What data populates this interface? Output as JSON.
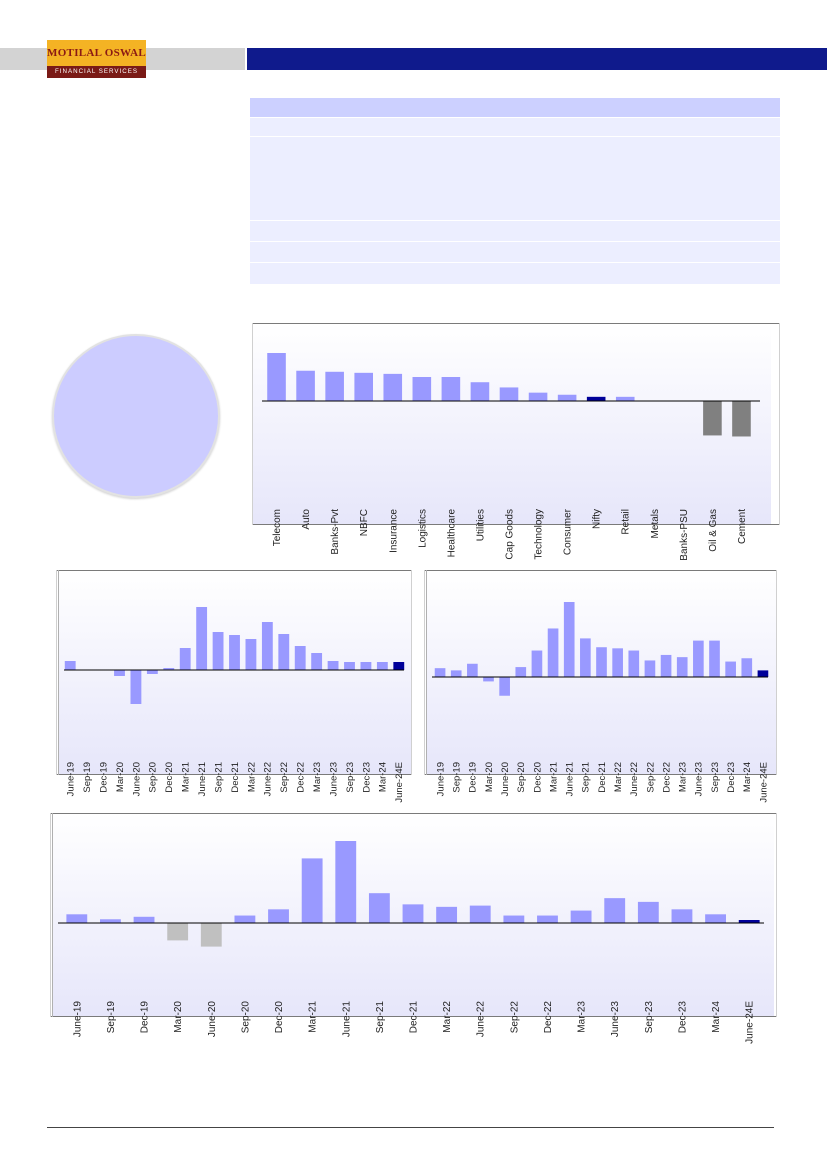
{
  "header": {
    "logo": {
      "brand": "MOTILAL OSWAL",
      "tagline": "FINANCIAL SERVICES"
    },
    "colors": {
      "bar_grey": "#d3d3d3",
      "bar_blue": "#0f1a8c"
    }
  },
  "table": {
    "rows": 7
  },
  "colors": {
    "bar": "#9999ff",
    "highlight": "#000099",
    "negative_dark": "#808080",
    "negative_light": "#c0c0c0",
    "panel_bg_top": "#ffffff",
    "panel_bg_bottom": "#e6e6fa"
  },
  "charts": {
    "sector": {
      "chart_data": {
        "type": "bar",
        "categories": [
          "Telecom",
          "Auto",
          "Banks-Pvt",
          "NBFC",
          "Insurance",
          "Logistics",
          "Healthcare",
          "Utilities",
          "Cap Goods",
          "Technology",
          "Consumer",
          "Nifty",
          "Retail",
          "Metals",
          "Banks-PSU",
          "Oil & Gas",
          "Cement"
        ],
        "values": [
          46,
          29,
          28,
          27,
          26,
          23,
          23,
          18,
          13,
          8,
          6,
          4,
          4,
          0,
          0,
          -33,
          -34
        ],
        "highlight_index": 11,
        "ylim": [
          -60,
          75
        ]
      }
    },
    "quarterly_left": {
      "chart_data": {
        "type": "bar",
        "categories": [
          "June-19",
          "Sep-19",
          "Dec-19",
          "Mar-20",
          "June-20",
          "Sep-20",
          "Dec-20",
          "Mar-21",
          "June-21",
          "Sep-21",
          "Dec-21",
          "Mar-22",
          "June-22",
          "Sep-22",
          "Dec-22",
          "Mar-23",
          "June-23",
          "Sep-23",
          "Dec-23",
          "Mar-24",
          "June-24E"
        ],
        "values": [
          9,
          0,
          0,
          -6,
          -34,
          -4,
          2,
          22,
          63,
          38,
          35,
          31,
          48,
          36,
          24,
          17,
          9,
          8,
          8,
          8,
          8
        ],
        "highlight_index": 20,
        "ylim": [
          -40,
          100
        ]
      }
    },
    "quarterly_right": {
      "chart_data": {
        "type": "bar",
        "categories": [
          "June-19",
          "Sep-19",
          "Dec-19",
          "Mar-20",
          "June-20",
          "Sep-20",
          "Dec-20",
          "Mar-21",
          "June-21",
          "Sep-21",
          "Dec-21",
          "Mar-22",
          "June-22",
          "Sep-22",
          "Dec-22",
          "Mar-23",
          "June-23",
          "Sep-23",
          "Dec-23",
          "Mar-24",
          "June-24E"
        ],
        "values": [
          8,
          6,
          12,
          -4,
          -17,
          9,
          24,
          44,
          68,
          35,
          27,
          26,
          24,
          15,
          20,
          18,
          33,
          33,
          14,
          17,
          6
        ],
        "highlight_index": 20,
        "ylim": [
          -30,
          100
        ]
      }
    },
    "quarterly_wide": {
      "chart_data": {
        "type": "bar",
        "categories": [
          "June-19",
          "Sep-19",
          "Dec-19",
          "Mar-20",
          "June-20",
          "Sep-20",
          "Dec-20",
          "Mar-21",
          "June-21",
          "Sep-21",
          "Dec-21",
          "Mar-22",
          "June-22",
          "Sep-22",
          "Dec-22",
          "Mar-23",
          "June-23",
          "Sep-23",
          "Dec-23",
          "Mar-24",
          "June-24E"
        ],
        "values": [
          7,
          3,
          5,
          -14,
          -19,
          6,
          11,
          52,
          66,
          24,
          15,
          13,
          14,
          6,
          6,
          10,
          20,
          17,
          11,
          7,
          2
        ],
        "highlight_index": 20,
        "negative_style": "light",
        "ylim": [
          -70,
          100
        ]
      }
    }
  }
}
